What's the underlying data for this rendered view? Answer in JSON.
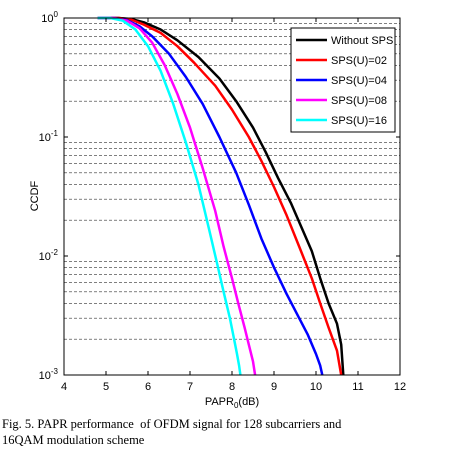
{
  "chart_data": {
    "type": "line",
    "title": "",
    "xlabel": "PAPR",
    "xlabel_sub": "0",
    "xlabel_unit": "(dB)",
    "ylabel": "CCDF",
    "xlim": [
      4,
      12
    ],
    "ylim": [
      0.001,
      1
    ],
    "yscale": "log",
    "grid": "y-minor-dashed",
    "legend_position": "top-right",
    "x_ticks": [
      "4",
      "5",
      "6",
      "7",
      "8",
      "9",
      "10",
      "11",
      "12"
    ],
    "y_ticks": [
      {
        "base": "10",
        "exp": "-3",
        "value": 0.001
      },
      {
        "base": "10",
        "exp": "-2",
        "value": 0.01
      },
      {
        "base": "10",
        "exp": "-1",
        "value": 0.1
      },
      {
        "base": "10",
        "exp": "0",
        "value": 1
      }
    ],
    "series": [
      {
        "name": "Without SPS",
        "color": "#000000",
        "x": [
          4.8,
          5.3,
          5.6,
          5.9,
          6.3,
          6.7,
          7.2,
          7.7,
          8.1,
          8.5,
          8.8,
          9.1,
          9.4,
          9.7,
          9.9,
          10.1,
          10.3,
          10.5,
          10.6,
          10.65
        ],
        "y": [
          1.0,
          1.0,
          0.98,
          0.92,
          0.8,
          0.65,
          0.47,
          0.31,
          0.2,
          0.12,
          0.075,
          0.045,
          0.028,
          0.016,
          0.011,
          0.0065,
          0.004,
          0.0027,
          0.0018,
          0.001
        ]
      },
      {
        "name": "SPS(U)=02",
        "color": "#ff0000",
        "x": [
          4.8,
          5.3,
          5.6,
          5.9,
          6.3,
          6.7,
          7.1,
          7.6,
          8.0,
          8.4,
          8.7,
          9.0,
          9.3,
          9.6,
          9.9,
          10.1,
          10.3,
          10.5,
          10.6
        ],
        "y": [
          1.0,
          1.0,
          0.97,
          0.88,
          0.75,
          0.58,
          0.42,
          0.27,
          0.17,
          0.1,
          0.063,
          0.038,
          0.022,
          0.012,
          0.0065,
          0.004,
          0.0025,
          0.0016,
          0.001
        ]
      },
      {
        "name": "SPS(U)=04",
        "color": "#0000ff",
        "x": [
          4.8,
          5.2,
          5.5,
          5.8,
          6.1,
          6.5,
          6.9,
          7.3,
          7.7,
          8.1,
          8.4,
          8.7,
          9.0,
          9.3,
          9.6,
          9.8,
          10.0,
          10.1,
          10.15
        ],
        "y": [
          1.0,
          1.0,
          0.96,
          0.85,
          0.7,
          0.5,
          0.32,
          0.19,
          0.1,
          0.05,
          0.027,
          0.014,
          0.008,
          0.0048,
          0.003,
          0.0022,
          0.0015,
          0.0012,
          0.001
        ]
      },
      {
        "name": "SPS(U)=08",
        "color": "#ff00ff",
        "x": [
          4.8,
          5.2,
          5.5,
          5.8,
          6.1,
          6.4,
          6.7,
          7.0,
          7.3,
          7.6,
          7.8,
          8.0,
          8.15,
          8.3,
          8.4,
          8.5,
          8.55
        ],
        "y": [
          1.0,
          1.0,
          0.95,
          0.82,
          0.62,
          0.4,
          0.23,
          0.12,
          0.055,
          0.024,
          0.012,
          0.0065,
          0.004,
          0.0025,
          0.0018,
          0.0013,
          0.001
        ]
      },
      {
        "name": "SPS(U)=16",
        "color": "#00ffff",
        "x": [
          4.8,
          5.1,
          5.4,
          5.7,
          6.0,
          6.3,
          6.6,
          6.9,
          7.2,
          7.45,
          7.65,
          7.8,
          7.95,
          8.05,
          8.12,
          8.17,
          8.2
        ],
        "y": [
          1.0,
          1.0,
          0.95,
          0.8,
          0.58,
          0.36,
          0.19,
          0.09,
          0.04,
          0.017,
          0.0085,
          0.005,
          0.003,
          0.002,
          0.0015,
          0.0012,
          0.001
        ]
      }
    ]
  },
  "caption": {
    "line1": "Fig. 5. PAPR performance  of OFDM signal for 128 subcarriers and",
    "line2": "16QAM modulation scheme"
  }
}
